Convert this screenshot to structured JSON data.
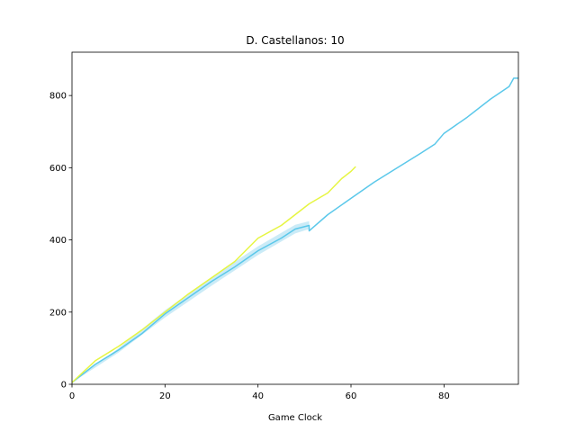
{
  "chart_data": {
    "type": "line",
    "title": "D. Castellanos: 10",
    "xlabel": "Game Clock",
    "ylabel": "",
    "xlim": [
      0,
      96
    ],
    "ylim": [
      0,
      920
    ],
    "xticks": [
      0,
      20,
      40,
      60,
      80
    ],
    "yticks": [
      0,
      200,
      400,
      600,
      800
    ],
    "grid": false,
    "legend": "none",
    "series": [
      {
        "color": "#5bc8ea",
        "band_color": "#a8def2",
        "points": [
          [
            0,
            5
          ],
          [
            5,
            55
          ],
          [
            10,
            95
          ],
          [
            15,
            140
          ],
          [
            20,
            195
          ],
          [
            25,
            240
          ],
          [
            30,
            285
          ],
          [
            35,
            325
          ],
          [
            40,
            370
          ],
          [
            45,
            405
          ],
          [
            48,
            430
          ],
          [
            51,
            440
          ],
          [
            51,
            425
          ],
          [
            55,
            470
          ],
          [
            60,
            515
          ],
          [
            65,
            560
          ],
          [
            70,
            600
          ],
          [
            75,
            640
          ],
          [
            78,
            665
          ],
          [
            80,
            695
          ],
          [
            85,
            740
          ],
          [
            90,
            790
          ],
          [
            94,
            825
          ],
          [
            95,
            848
          ],
          [
            96,
            848
          ]
        ],
        "band": [
          [
            0,
            5,
            5
          ],
          [
            10,
            88,
            100
          ],
          [
            20,
            185,
            205
          ],
          [
            30,
            273,
            297
          ],
          [
            40,
            358,
            382
          ],
          [
            48,
            418,
            442
          ],
          [
            51,
            430,
            452
          ]
        ]
      },
      {
        "color": "#e6f542",
        "points": [
          [
            0,
            5
          ],
          [
            5,
            65
          ],
          [
            10,
            105
          ],
          [
            15,
            150
          ],
          [
            20,
            200
          ],
          [
            25,
            250
          ],
          [
            30,
            295
          ],
          [
            35,
            340
          ],
          [
            40,
            405
          ],
          [
            45,
            440
          ],
          [
            48,
            470
          ],
          [
            51,
            500
          ],
          [
            55,
            530
          ],
          [
            58,
            570
          ],
          [
            60,
            590
          ],
          [
            61,
            603
          ]
        ]
      }
    ]
  }
}
